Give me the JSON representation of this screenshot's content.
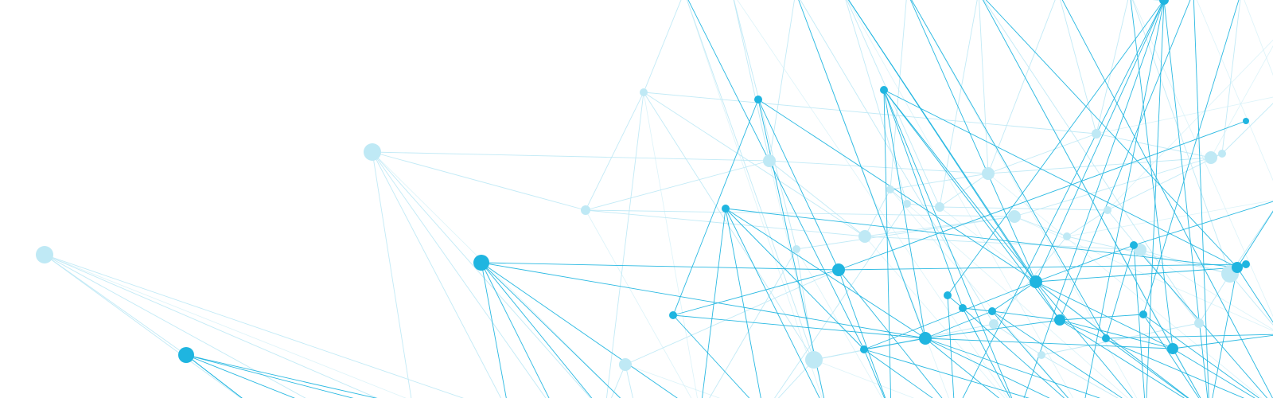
{
  "image": {
    "background_color": "#ffffff",
    "primary_color": "#1fb5e0",
    "faded_color": "#bfe9f5",
    "faint_line_color": "#d3f0f8"
  }
}
